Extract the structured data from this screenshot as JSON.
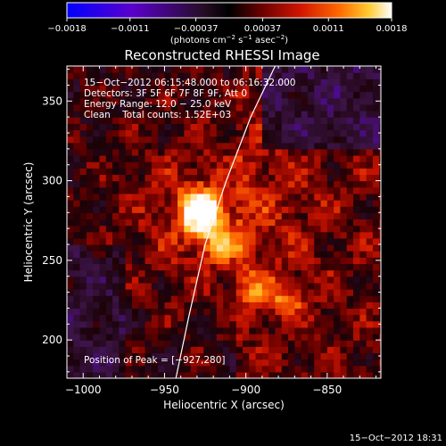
{
  "chart_data": {
    "type": "heatmap",
    "title": "Reconstructed RHESSI Image",
    "xlabel": "Heliocentric X (arcsec)",
    "ylabel": "Heliocentric Y (arcsec)",
    "xlim": [
      -1010,
      -817
    ],
    "ylim": [
      176,
      372
    ],
    "x_ticks": [
      -1000,
      -950,
      -900,
      -850
    ],
    "x_tick_labels": [
      "−1000",
      "−950",
      "−900",
      "−850"
    ],
    "y_ticks": [
      200,
      250,
      300,
      350
    ],
    "y_tick_labels": [
      "200",
      "250",
      "300",
      "350"
    ],
    "colorbar": {
      "range": [
        -0.0018,
        0.0018
      ],
      "ticks": [
        -0.0018,
        -0.0011,
        -0.00037,
        0.00037,
        0.0011,
        0.0018
      ],
      "tick_labels": [
        "−0.0018",
        "−0.0011",
        "−0.00037",
        "0.00037",
        "0.0011",
        "0.0018"
      ],
      "unit_prefix": "(photons cm",
      "unit_exp1": "−2",
      "unit_mid": " s",
      "unit_exp2": "−1",
      "unit_mid2": " asec",
      "unit_exp3": "−2",
      "unit_suffix": ")"
    },
    "annotations": {
      "time_range": "15−Oct−2012 06:15:48.000 to 06:16:32.000",
      "detectors": "Detectors: 3F 5F 6F 7F 8F 9F, Att 0",
      "energy_range": "Energy Range: 12.0 − 25.0 keV",
      "method_counts": "Clean    Total counts: 1.52E+03",
      "peak": "Position of Peak = [−927,280]"
    },
    "peak": {
      "x": -927,
      "y": 280
    },
    "bright_sources": [
      {
        "x": -927,
        "y": 280,
        "intensity": 1.0
      },
      {
        "x": -915,
        "y": 260,
        "intensity": 0.55
      },
      {
        "x": -895,
        "y": 232,
        "intensity": 0.35
      },
      {
        "x": -875,
        "y": 225,
        "intensity": 0.4
      }
    ],
    "limb": [
      [
        -943,
        176
      ],
      [
        -935,
        215
      ],
      [
        -925,
        260
      ],
      [
        -912,
        300
      ],
      [
        -897,
        340
      ],
      [
        -882,
        372
      ]
    ],
    "colors": {
      "limb": "#ffffff",
      "background": "#000000"
    }
  },
  "timestamp": "15−Oct−2012 18:31"
}
